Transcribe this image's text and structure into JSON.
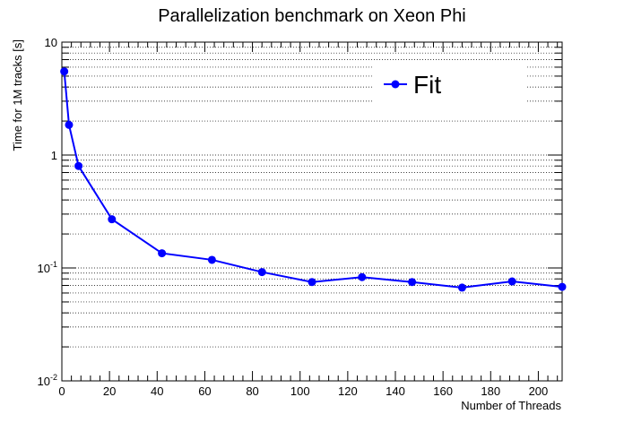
{
  "chart_data": {
    "type": "line",
    "title": "Parallelization benchmark on Xeon Phi",
    "xlabel": "Number of Threads",
    "ylabel": "Time for 1M tracks [s]",
    "xlim": [
      0,
      210
    ],
    "ylim": [
      0.01,
      10
    ],
    "yscale": "log",
    "x_ticks": [
      0,
      20,
      40,
      60,
      80,
      100,
      120,
      140,
      160,
      180,
      200
    ],
    "y_ticks": [
      {
        "value": 10,
        "base": "10",
        "exp": ""
      },
      {
        "value": 1,
        "base": "1",
        "exp": ""
      },
      {
        "value": 0.1,
        "base": "10",
        "exp": "-1"
      },
      {
        "value": 0.01,
        "base": "10",
        "exp": "-2"
      }
    ],
    "grid": "y-minor-dotted",
    "legend_position": "top-right",
    "series": [
      {
        "name": "Fit",
        "color": "#0000ff",
        "marker": "circle",
        "x": [
          1,
          3,
          7,
          21,
          42,
          63,
          84,
          105,
          126,
          147,
          168,
          189,
          210
        ],
        "y": [
          5.5,
          1.85,
          0.8,
          0.27,
          0.135,
          0.118,
          0.092,
          0.075,
          0.083,
          0.075,
          0.067,
          0.076,
          0.068
        ]
      }
    ]
  }
}
